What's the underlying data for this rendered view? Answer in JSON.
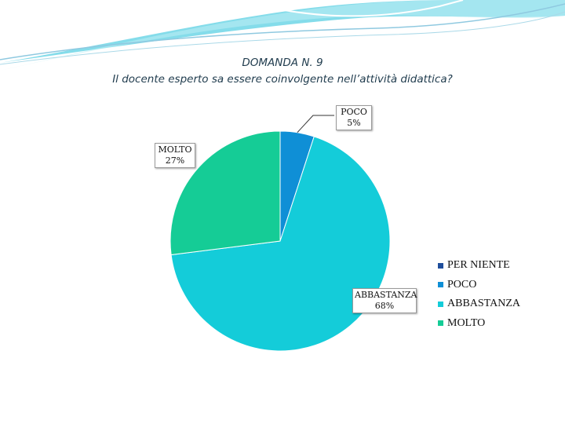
{
  "title_line1": "DOMANDA N. 9",
  "title_line2": "Il docente esperto sa essere coinvolgente nell’attività didattica?",
  "colors": {
    "PER NIENTE": "#1f4e9c",
    "POCO": "#0f8fd6",
    "ABBASTANZA": "#14ccd9",
    "MOLTO": "#15cc96",
    "leader": "#333333",
    "deco_fill": "#6fd6e6",
    "deco_line": "#8fc9e0"
  },
  "chart_data": {
    "type": "pie",
    "title": "DOMANDA N. 9 Il docente esperto sa essere coinvolgente nell’attività didattica?",
    "categories": [
      "PER NIENTE",
      "POCO",
      "ABBASTANZA",
      "MOLTO"
    ],
    "values": [
      0,
      5,
      68,
      27
    ],
    "value_labels": [
      "",
      "5%",
      "68%",
      "27%"
    ],
    "legend_position": "right",
    "start": "12 o'clock",
    "direction": "clockwise"
  },
  "data_labels": [
    {
      "name": "POCO",
      "pct": "5%"
    },
    {
      "name": "ABBASTANZA",
      "pct": "68%"
    },
    {
      "name": "MOLTO",
      "pct": "27%"
    }
  ],
  "legend": [
    "PER NIENTE",
    "POCO",
    "ABBASTANZA",
    "MOLTO"
  ]
}
